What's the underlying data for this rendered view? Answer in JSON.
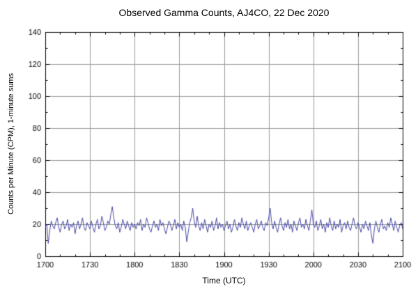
{
  "chart_data": {
    "type": "line",
    "title": "Observed Gamma Counts, AJ4CO, 22 Dec 2020",
    "xlabel": "Time (UTC)",
    "ylabel": "Counts per Minute (CPM), 1-minute sums",
    "xlim_minutes": [
      0,
      240
    ],
    "ylim": [
      0,
      140
    ],
    "x_tick_labels": [
      "1700",
      "1730",
      "1800",
      "1830",
      "1900",
      "1930",
      "2000",
      "2030",
      "2100"
    ],
    "x_tick_minutes": [
      0,
      30,
      60,
      90,
      120,
      150,
      180,
      210,
      240
    ],
    "y_tick_labels": [
      "0",
      "20",
      "40",
      "60",
      "80",
      "100",
      "120",
      "140"
    ],
    "y_tick_values": [
      0,
      20,
      40,
      60,
      80,
      100,
      120,
      140
    ],
    "grid": true,
    "legend": false,
    "line_color": "#4545a5",
    "grid_color": "#9a9a9a",
    "axis_color": "#000000",
    "series": [
      {
        "name": "gamma_counts_cpm_1min",
        "values": [
          18,
          20,
          8,
          16,
          22,
          19,
          17,
          21,
          24,
          18,
          15,
          20,
          22,
          17,
          19,
          23,
          16,
          20,
          18,
          21,
          14,
          19,
          22,
          17,
          20,
          24,
          18,
          16,
          21,
          19,
          17,
          22,
          18,
          15,
          20,
          23,
          17,
          19,
          25,
          21,
          16,
          18,
          22,
          20,
          26,
          31,
          24,
          19,
          17,
          21,
          15,
          18,
          23,
          20,
          17,
          22,
          19,
          16,
          21,
          18,
          20,
          17,
          21,
          19,
          23,
          16,
          20,
          18,
          24,
          21,
          17,
          15,
          19,
          22,
          18,
          20,
          16,
          23,
          19,
          21,
          17,
          14,
          18,
          22,
          20,
          16,
          19,
          23,
          17,
          21,
          18,
          20,
          16,
          22,
          18,
          9,
          15,
          21,
          24,
          30,
          22,
          18,
          25,
          19,
          16,
          21,
          17,
          23,
          19,
          15,
          20,
          18,
          22,
          16,
          19,
          24,
          17,
          21,
          18,
          20,
          16,
          19,
          22,
          17,
          20,
          15,
          18,
          23,
          19,
          16,
          21,
          18,
          24,
          20,
          17,
          22,
          16,
          19,
          21,
          18,
          15,
          20,
          23,
          17,
          19,
          22,
          18,
          16,
          21,
          19,
          24,
          30,
          21,
          17,
          22,
          18,
          15,
          20,
          24,
          19,
          16,
          21,
          18,
          23,
          17,
          20,
          15,
          22,
          19,
          16,
          21,
          24,
          18,
          20,
          17,
          23,
          19,
          16,
          22,
          29,
          20,
          18,
          22,
          16,
          19,
          23,
          17,
          20,
          15,
          21,
          18,
          24,
          19,
          16,
          22,
          17,
          20,
          18,
          23,
          15,
          19,
          21,
          17,
          22,
          18,
          16,
          20,
          24,
          19,
          17,
          21,
          18,
          15,
          20,
          17,
          22,
          19,
          16,
          21,
          13,
          8,
          17,
          22,
          18,
          15,
          20,
          23,
          17,
          19,
          16,
          21,
          18,
          24,
          20,
          16,
          22,
          18,
          15,
          19,
          21,
          17
        ]
      }
    ]
  }
}
